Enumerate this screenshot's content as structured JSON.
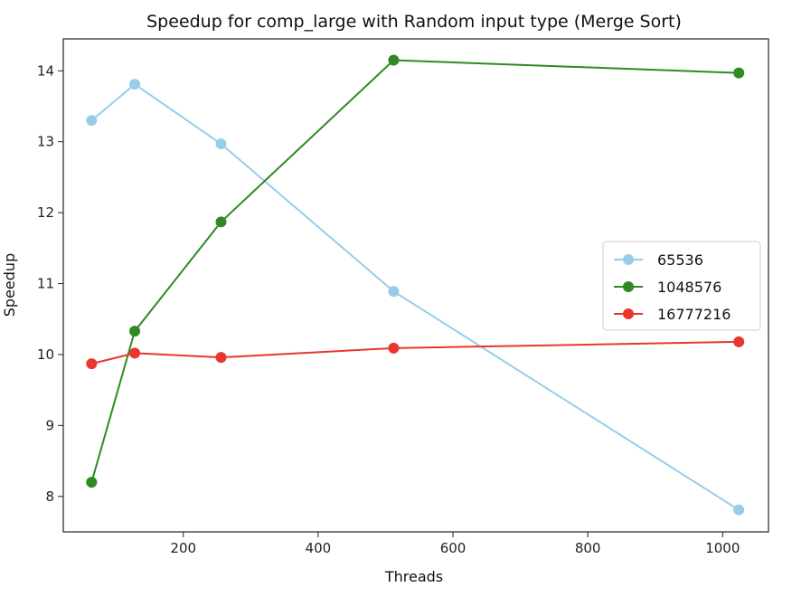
{
  "chart_data": {
    "type": "line",
    "title": "Speedup for comp_large with Random input type (Merge Sort)",
    "xlabel": "Threads",
    "ylabel": "Speedup",
    "xlim": [
      22,
      1068
    ],
    "ylim": [
      7.5,
      14.45
    ],
    "xticks": [
      200,
      400,
      600,
      800,
      1000
    ],
    "yticks": [
      8,
      9,
      10,
      11,
      12,
      13,
      14
    ],
    "x": [
      64,
      128,
      256,
      512,
      1024
    ],
    "legend_position": "center-right",
    "grid": false,
    "series": [
      {
        "name": "65536",
        "color": "#98cde8",
        "values": [
          13.3,
          13.81,
          12.97,
          10.89,
          7.81
        ]
      },
      {
        "name": "1048576",
        "color": "#2f8a22",
        "values": [
          8.2,
          10.33,
          11.87,
          14.15,
          13.97
        ]
      },
      {
        "name": "16777216",
        "color": "#e8372c",
        "values": [
          9.87,
          10.02,
          9.96,
          10.09,
          10.18
        ]
      }
    ]
  }
}
